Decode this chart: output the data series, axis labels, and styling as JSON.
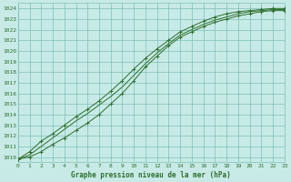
{
  "title": "Graphe pression niveau de la mer (hPa)",
  "bg_color": "#c8eae6",
  "grid_color": "#7abfb8",
  "line_color": "#2d6e2d",
  "x_min": 0,
  "x_max": 23,
  "y_min": 1009.5,
  "y_max": 1024.5,
  "line1_with_markers": {
    "x": [
      0,
      1,
      2,
      3,
      4,
      5,
      6,
      7,
      8,
      9,
      10,
      11,
      12,
      13,
      14,
      15,
      16,
      17,
      18,
      19,
      20,
      21,
      22,
      23
    ],
    "y": [
      1009.8,
      1010.0,
      1010.5,
      1011.2,
      1011.8,
      1012.5,
      1013.2,
      1014.0,
      1015.0,
      1016.0,
      1017.2,
      1018.5,
      1019.5,
      1020.5,
      1021.3,
      1021.8,
      1022.3,
      1022.7,
      1023.0,
      1023.3,
      1023.5,
      1023.7,
      1023.8,
      1023.8
    ]
  },
  "line2_with_markers": {
    "x": [
      0,
      1,
      2,
      3,
      4,
      5,
      6,
      7,
      8,
      9,
      10,
      11,
      12,
      13,
      14,
      15,
      16,
      17,
      18,
      19,
      20,
      21,
      22,
      23
    ],
    "y": [
      1009.8,
      1010.5,
      1011.5,
      1012.2,
      1013.0,
      1013.8,
      1014.5,
      1015.3,
      1016.2,
      1017.2,
      1018.3,
      1019.3,
      1020.2,
      1021.0,
      1021.8,
      1022.3,
      1022.8,
      1023.2,
      1023.5,
      1023.7,
      1023.8,
      1023.9,
      1024.0,
      1024.0
    ]
  },
  "line3_no_markers": {
    "x": [
      0,
      1,
      2,
      3,
      4,
      5,
      6,
      7,
      8,
      9,
      10,
      11,
      12,
      13,
      14,
      15,
      16,
      17,
      18,
      19,
      20,
      21,
      22,
      23
    ],
    "y": [
      1009.8,
      1010.2,
      1011.0,
      1011.8,
      1012.6,
      1013.4,
      1014.1,
      1014.9,
      1015.7,
      1016.6,
      1017.7,
      1018.8,
      1019.8,
      1020.7,
      1021.5,
      1022.0,
      1022.5,
      1022.9,
      1023.2,
      1023.5,
      1023.7,
      1023.8,
      1023.9,
      1023.9
    ]
  },
  "yticks": [
    1010,
    1011,
    1012,
    1013,
    1014,
    1015,
    1016,
    1017,
    1018,
    1019,
    1020,
    1021,
    1022,
    1023,
    1024
  ],
  "xticks": [
    0,
    1,
    2,
    3,
    4,
    5,
    6,
    7,
    8,
    9,
    10,
    11,
    12,
    13,
    14,
    15,
    16,
    17,
    18,
    19,
    20,
    21,
    22,
    23
  ],
  "tick_fontsize": 4.5,
  "label_fontsize": 5.5,
  "lw": 0.7,
  "marker_size": 2.2,
  "marker_ew": 0.7
}
